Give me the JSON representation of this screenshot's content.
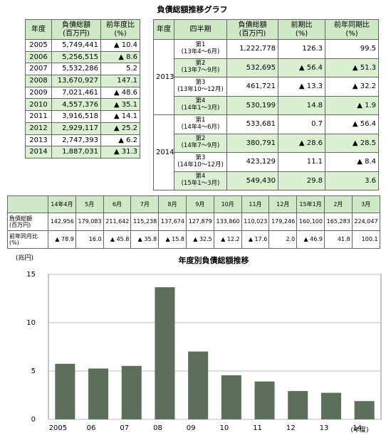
{
  "header": {
    "title": "負債総額推移グラフ"
  },
  "table1": {
    "headers": [
      "年度",
      [
        "負債総額",
        "(百万円)"
      ],
      [
        "前年度比",
        "(%)"
      ]
    ],
    "rows": [
      [
        "2005",
        "5,749,441",
        "▲ 10.4"
      ],
      [
        "2006",
        "5,256,515",
        "▲ 8.6"
      ],
      [
        "2007",
        "5,532,286",
        "5.2"
      ],
      [
        "2008",
        "13,670,927",
        "147.1"
      ],
      [
        "2009",
        "7,021,461",
        "▲ 48.6"
      ],
      [
        "2010",
        "4,557,376",
        "▲ 35.1"
      ],
      [
        "2011",
        "3,916,518",
        "▲ 14.1"
      ],
      [
        "2012",
        "2,929,117",
        "▲ 25.2"
      ],
      [
        "2013",
        "2,747,393",
        "▲ 6.2"
      ],
      [
        "2014",
        "1,887,031",
        "▲ 31.3"
      ]
    ]
  },
  "table2": {
    "headers": [
      "年度",
      "四半期",
      [
        "負債総額",
        "(百万円)"
      ],
      [
        "前期比",
        "(%)"
      ],
      [
        "前年同期比",
        "(%)"
      ]
    ],
    "groups": [
      {
        "year": "2013",
        "rows": [
          [
            [
              "第1",
              "(13年4～6月)"
            ],
            "1,222,778",
            "126.3",
            "99.5"
          ],
          [
            [
              "第2",
              "(13年7～9月)"
            ],
            "532,695",
            "▲ 56.4",
            "▲ 51.3"
          ],
          [
            [
              "第3",
              "(13年10～12月)"
            ],
            "461,721",
            "▲ 13.3",
            "▲ 32.2"
          ],
          [
            [
              "第4",
              "(14年1～3月)"
            ],
            "530,199",
            "14.8",
            "▲ 1.9"
          ]
        ]
      },
      {
        "year": "2014",
        "rows": [
          [
            [
              "第1",
              "(14年4～6月)"
            ],
            "533,681",
            "0.7",
            "▲ 56.4"
          ],
          [
            [
              "第2",
              "(14年7～9月)"
            ],
            "380,791",
            "▲ 28.6",
            "▲ 28.5"
          ],
          [
            [
              "第3",
              "(14年10～12月)"
            ],
            "423,129",
            "11.1",
            "▲ 8.4"
          ],
          [
            [
              "第4",
              "(15年1～3月)"
            ],
            "549,430",
            "29.8",
            "3.6"
          ]
        ]
      }
    ]
  },
  "table3": {
    "headers": [
      "14年4月",
      "5月",
      "6月",
      "7月",
      "8月",
      "9月",
      "10月",
      "11月",
      "12月",
      "15年1月",
      "2月",
      "3月"
    ],
    "rows": [
      {
        "label": [
          "負債総額",
          "(百万円)"
        ],
        "cells": [
          "142,956",
          "179,083",
          "211,642",
          "115,238",
          "137,674",
          "127,879",
          "133,860",
          "110,023",
          "179,246",
          "160,100",
          "165,283",
          "224,047"
        ]
      },
      {
        "label": [
          "前年同月比",
          "(%)"
        ],
        "cells": [
          "▲ 78.9",
          "16.0",
          "▲ 45.8",
          "▲ 35.8",
          "▲ 15.8",
          "▲ 32.5",
          "▲ 12.2",
          "▲ 17.6",
          "2.0",
          "▲ 46.9",
          "41.8",
          "100.1"
        ]
      }
    ]
  },
  "chart_data": {
    "type": "bar",
    "title": "年度別負債総額推移",
    "y_unit": "(兆円)",
    "x_unit": "(年度)",
    "categories": [
      "2005",
      "06",
      "07",
      "08",
      "09",
      "10",
      "11",
      "12",
      "13",
      "14"
    ],
    "values": [
      5.75,
      5.26,
      5.53,
      13.67,
      7.02,
      4.56,
      3.92,
      2.93,
      2.75,
      1.89
    ],
    "color": "#5b6f5b",
    "ylim": [
      0,
      15
    ],
    "yticks": [
      0,
      5,
      10,
      15
    ],
    "grid": true
  }
}
